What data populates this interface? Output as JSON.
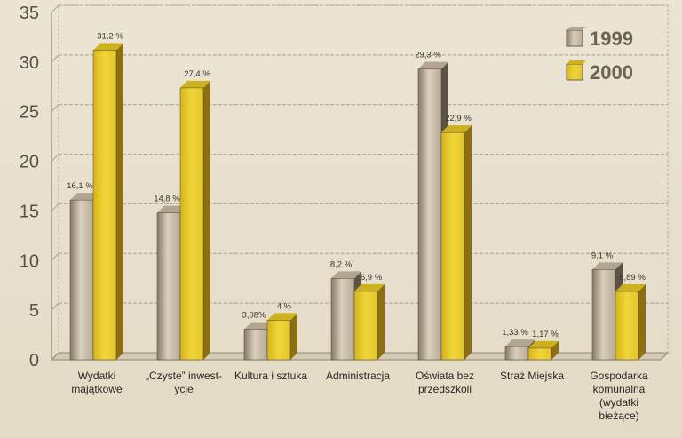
{
  "chart_data": {
    "type": "bar",
    "variant": "3d-grouped",
    "title": "",
    "xlabel": "",
    "ylabel": "",
    "ylim": [
      0,
      35
    ],
    "yticks": [
      0,
      5,
      10,
      15,
      20,
      25,
      30,
      35
    ],
    "grid": true,
    "legend_position": "top-right",
    "categories": [
      "Wydatki majątkowe",
      "„Czyste” inwestycje",
      "Kultura i sztuka",
      "Administracja",
      "Oświata bez przedszkoli",
      "Straż Miejska",
      "Gospodarka komunalna (wydatki bieżące)"
    ],
    "category_label_lines": [
      [
        "Wydatki",
        "majątkowe"
      ],
      [
        "„Czyste” inwest-",
        "ycje"
      ],
      [
        "Kultura i sztuka"
      ],
      [
        "Administracja"
      ],
      [
        "Oświata bez",
        "przedszkoli"
      ],
      [
        "Straż Miejska"
      ],
      [
        "Gospodarka",
        "komunalna",
        "(wydatki",
        "bieżące)"
      ]
    ],
    "series": [
      {
        "name": "1999",
        "color": "#c8bca8",
        "values": [
          16.1,
          14.8,
          3.08,
          8.2,
          29.3,
          1.33,
          9.1
        ],
        "labels": [
          "16,1 %",
          "14,8 %",
          "3,08%",
          "8,2 %",
          "29,3 %",
          "1,33 %",
          "9,1 %"
        ]
      },
      {
        "name": "2000",
        "color": "#e6c82a",
        "values": [
          31.2,
          27.4,
          4,
          6.9,
          22.9,
          1.17,
          6.89
        ],
        "labels": [
          "31,2 %",
          "27,4 %",
          "4 %",
          "6,9 %",
          "22,9 %",
          "1,17 %",
          "6,89 %"
        ]
      }
    ]
  }
}
